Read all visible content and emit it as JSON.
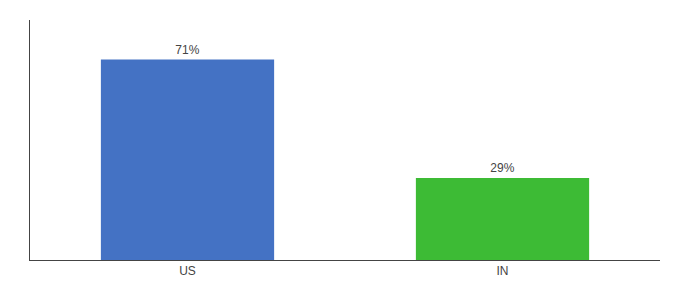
{
  "chart_data": {
    "type": "bar",
    "categories": [
      "US",
      "IN"
    ],
    "values": [
      71,
      29
    ],
    "value_labels": [
      "71%",
      "29%"
    ],
    "colors": [
      "#4472c4",
      "#3dbb35"
    ],
    "ylim": [
      0,
      85
    ],
    "data_labels": true,
    "tick_labels": "x",
    "grid": false
  }
}
